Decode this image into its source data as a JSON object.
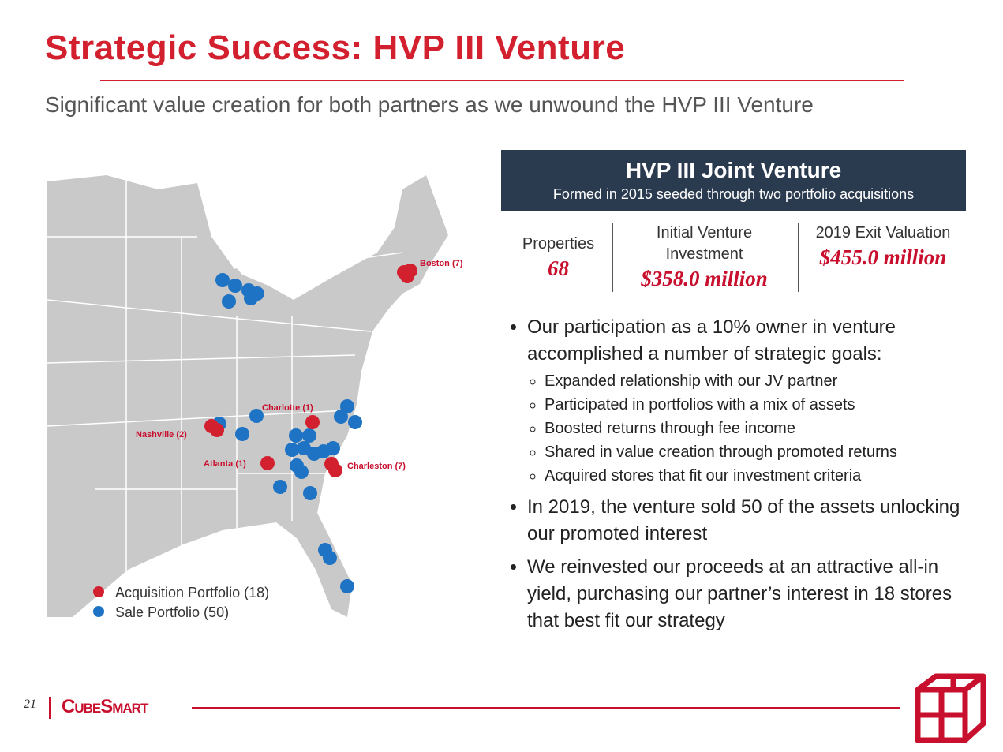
{
  "header": {
    "title": "Strategic Success: HVP III Venture",
    "subtitle": "Significant value creation for both partners as we unwound the HVP III Venture"
  },
  "map": {
    "labels": [
      "Boston (7)",
      "Charlotte (1)",
      "Nashville (2)",
      "Atlanta (1)",
      "Charleston (7)"
    ],
    "legend": [
      "Acquisition Portfolio (18)",
      "Sale Portfolio (50)"
    ]
  },
  "panel": {
    "title": "HVP III Joint Venture",
    "subtitle": "Formed in 2015 seeded through two portfolio acquisitions",
    "stats": [
      {
        "label": "Properties",
        "value": "68"
      },
      {
        "label": "Initial Venture Investment",
        "value": "$358.0 million"
      },
      {
        "label": "2019 Exit Valuation",
        "value": "$455.0 million"
      }
    ]
  },
  "bullets": [
    {
      "text": "Our participation as a 10% owner in venture accomplished a number of strategic goals:",
      "sub": [
        "Expanded relationship with our JV partner",
        "Participated in portfolios with a mix of assets",
        "Boosted returns through fee income",
        "Shared in value creation through promoted returns",
        "Acquired stores that fit our investment criteria"
      ]
    },
    {
      "text": "In 2019, the venture sold 50 of the assets unlocking our promoted interest",
      "sub": []
    },
    {
      "text": "We reinvested our proceeds at an attractive all-in yield, purchasing our partner’s interest in 18 stores that best fit our strategy",
      "sub": []
    }
  ],
  "footer": {
    "page": "21",
    "logo": "CubeSmart"
  }
}
